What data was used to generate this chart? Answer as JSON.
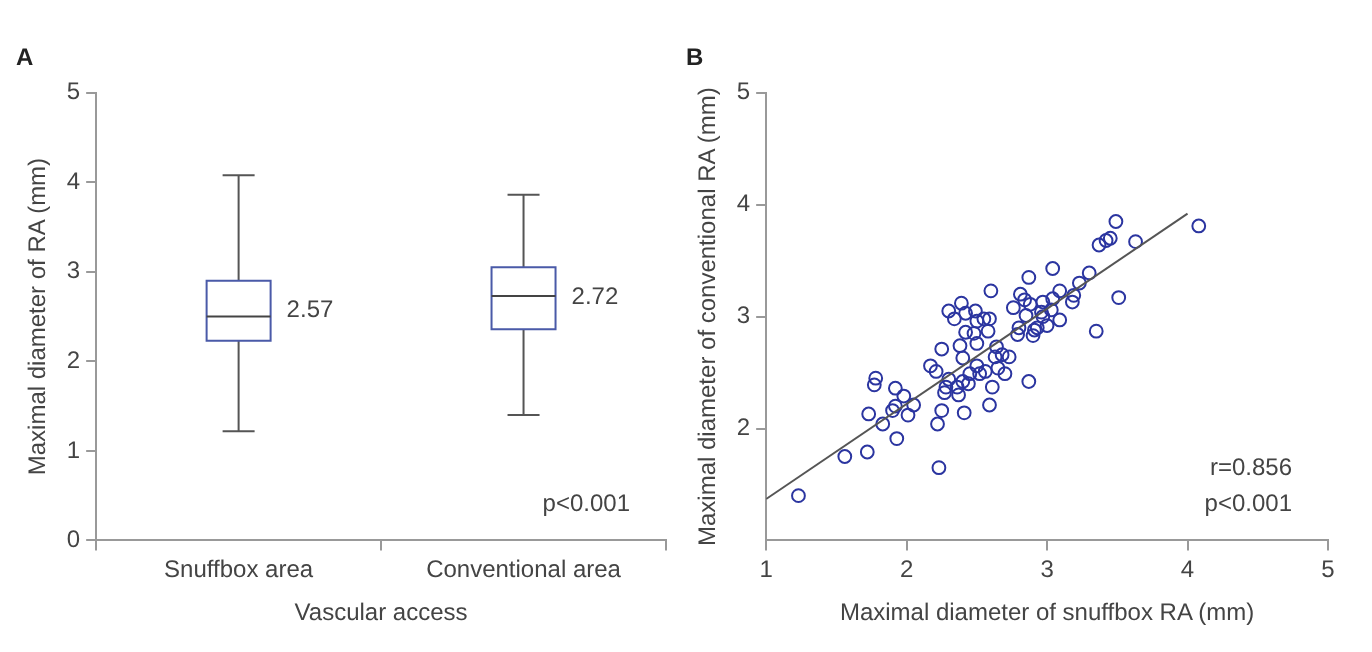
{
  "chart_data": [
    {
      "type": "box",
      "title": "A",
      "xlabel": "Vascular access",
      "ylabel": "Maximal diameter of RA (mm)",
      "categories": [
        "Snuffbox area",
        "Conventional area"
      ],
      "color": "#4a5aa8",
      "boxes": [
        {
          "low": 1.22,
          "q1": 2.23,
          "median": 2.5,
          "q3": 2.9,
          "high": 4.08
        },
        {
          "low": 1.4,
          "q1": 2.36,
          "median": 2.73,
          "q3": 3.05,
          "high": 3.86
        }
      ],
      "ylim": [
        0,
        5
      ],
      "yticks": [
        0,
        1,
        2,
        3,
        4,
        5
      ],
      "grid": false,
      "legend": false,
      "annotations": [
        {
          "text": "2.57",
          "x": "Snuffbox area",
          "y": 2.57
        },
        {
          "text": "2.72",
          "x": "Conventional area",
          "y": 2.72
        },
        "p<0.001"
      ]
    },
    {
      "type": "scatter",
      "title": "B",
      "xlabel": "Maximal diameter of snuffbox RA (mm)",
      "ylabel": "Maximal diameter of conventional RA (mm)",
      "grid": false,
      "legend": false,
      "xlim": [
        1,
        5
      ],
      "xticks": [
        1,
        2,
        3,
        4,
        5
      ],
      "ylim": [
        1,
        5
      ],
      "yticks": [
        2,
        3,
        4,
        5
      ],
      "series": [
        {
          "color": "#2b35a0",
          "marker": "circle",
          "x": [
            1.23,
            1.56,
            1.72,
            1.73,
            1.78,
            1.77,
            1.83,
            1.93,
            1.92,
            1.98,
            1.92,
            1.9,
            2.01,
            2.05,
            2.17,
            2.21,
            2.22,
            2.23,
            2.25,
            2.25,
            2.27,
            2.3,
            2.28,
            2.3,
            2.34,
            2.36,
            2.37,
            2.38,
            2.39,
            2.4,
            2.41,
            2.42,
            2.42,
            2.4,
            2.44,
            2.45,
            2.48,
            2.49,
            2.5,
            2.5,
            2.5,
            2.52,
            2.56,
            2.55,
            2.59,
            2.6,
            2.58,
            2.59,
            2.61,
            2.63,
            2.64,
            2.65,
            2.68,
            2.7,
            2.73,
            2.76,
            2.79,
            2.8,
            2.81,
            2.84,
            2.85,
            2.87,
            2.87,
            2.88,
            2.9,
            2.91,
            2.93,
            2.96,
            2.97,
            2.97,
            3.0,
            3.03,
            3.04,
            3.04,
            3.09,
            3.09,
            3.18,
            3.19,
            3.23,
            3.3,
            3.35,
            3.37,
            3.42,
            3.45,
            3.49,
            3.51,
            3.63,
            4.08
          ],
          "values": [
            1.4,
            1.75,
            1.79,
            2.13,
            2.45,
            2.39,
            2.04,
            1.91,
            2.36,
            2.29,
            2.2,
            2.16,
            2.12,
            2.21,
            2.56,
            2.51,
            2.04,
            1.65,
            2.71,
            2.16,
            2.32,
            2.44,
            2.37,
            3.05,
            2.98,
            2.37,
            2.3,
            2.74,
            3.12,
            2.42,
            2.14,
            2.86,
            3.03,
            2.63,
            2.4,
            2.49,
            2.85,
            3.05,
            2.96,
            2.76,
            2.56,
            2.49,
            2.51,
            2.98,
            2.98,
            3.23,
            2.87,
            2.21,
            2.37,
            2.64,
            2.73,
            2.54,
            2.66,
            2.49,
            2.64,
            3.08,
            2.84,
            2.9,
            3.2,
            3.15,
            3.01,
            3.35,
            2.42,
            3.11,
            2.83,
            2.88,
            2.9,
            3.04,
            3.13,
            3.0,
            2.92,
            3.06,
            3.43,
            3.16,
            2.97,
            3.23,
            3.13,
            3.19,
            3.3,
            3.39,
            2.87,
            3.64,
            3.68,
            3.7,
            3.85,
            3.17,
            3.67,
            3.81
          ]
        },
        {
          "type": "line",
          "color": "#555555",
          "x": [
            1,
            4
          ],
          "values": [
            1.37,
            3.92
          ]
        }
      ],
      "annotations": [
        "r=0.856",
        "p<0.001"
      ]
    }
  ]
}
